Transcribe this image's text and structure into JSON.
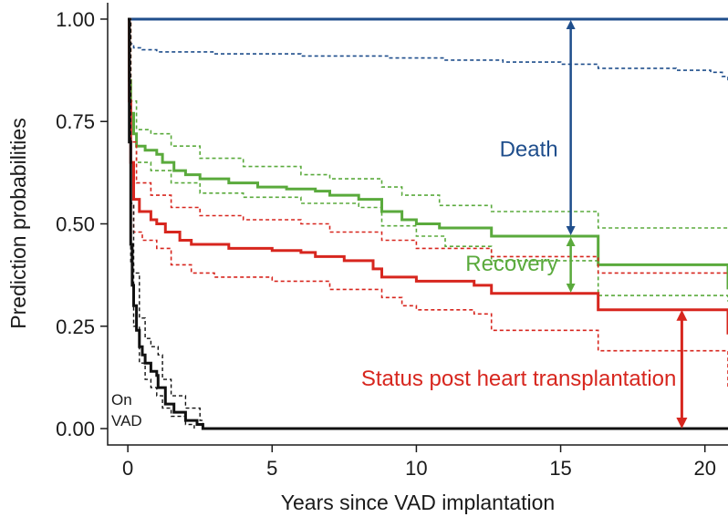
{
  "chart_data": {
    "type": "line",
    "xlabel": "Years since VAD implantation",
    "ylabel": "Prediction probabilities",
    "xlim": [
      -0.7,
      20.8
    ],
    "ylim": [
      -0.04,
      1.04
    ],
    "x_ticks": [
      0,
      5,
      10,
      15,
      20
    ],
    "x_tick_labels": [
      "0",
      "5",
      "10",
      "15",
      "20"
    ],
    "y_ticks": [
      0,
      0.25,
      0.5,
      0.75,
      1.0
    ],
    "y_tick_labels": [
      "0.00",
      "0.25",
      "0.50",
      "0.75",
      "1.00"
    ],
    "grid": false,
    "colors": {
      "death": "#1f4e8c",
      "recovery": "#5aaa3c",
      "transplant": "#d7261e",
      "on_vad": "#111111"
    },
    "series": [
      {
        "key": "death_upper",
        "color": "death",
        "style": "solid",
        "width": 3,
        "points": [
          [
            0,
            1.0
          ],
          [
            20.8,
            1.0
          ]
        ]
      },
      {
        "key": "death_ci",
        "color": "death",
        "style": "dashed",
        "width": 1.6,
        "points": [
          [
            0,
            1.0
          ],
          [
            0.05,
            0.96
          ],
          [
            0.1,
            0.94
          ],
          [
            0.2,
            0.93
          ],
          [
            0.5,
            0.925
          ],
          [
            1,
            0.92
          ],
          [
            3,
            0.915
          ],
          [
            6,
            0.91
          ],
          [
            9,
            0.905
          ],
          [
            11,
            0.9
          ],
          [
            13,
            0.895
          ],
          [
            15,
            0.89
          ],
          [
            16.3,
            0.88
          ],
          [
            19,
            0.875
          ],
          [
            20.2,
            0.87
          ],
          [
            20.6,
            0.86
          ],
          [
            20.8,
            0.85
          ]
        ]
      },
      {
        "key": "recovery_lower_upper",
        "color": "recovery",
        "style": "solid",
        "width": 3,
        "points": [
          [
            0,
            1.0
          ],
          [
            0.05,
            0.85
          ],
          [
            0.1,
            0.77
          ],
          [
            0.2,
            0.72
          ],
          [
            0.3,
            0.69
          ],
          [
            0.6,
            0.68
          ],
          [
            1,
            0.67
          ],
          [
            1.2,
            0.65
          ],
          [
            1.6,
            0.63
          ],
          [
            2,
            0.62
          ],
          [
            2.5,
            0.61
          ],
          [
            3.5,
            0.6
          ],
          [
            4.5,
            0.59
          ],
          [
            5.5,
            0.585
          ],
          [
            6.5,
            0.58
          ],
          [
            7,
            0.57
          ],
          [
            8,
            0.56
          ],
          [
            8.8,
            0.53
          ],
          [
            9.5,
            0.51
          ],
          [
            10,
            0.5
          ],
          [
            10.8,
            0.49
          ],
          [
            12.5,
            0.49
          ],
          [
            12.6,
            0.47
          ],
          [
            15.5,
            0.47
          ],
          [
            16.3,
            0.4
          ],
          [
            20.6,
            0.4
          ],
          [
            20.8,
            0.34
          ]
        ]
      },
      {
        "key": "recovery_ci_hi",
        "color": "recovery",
        "style": "dashed",
        "width": 1.6,
        "points": [
          [
            0,
            1.0
          ],
          [
            0.1,
            0.8
          ],
          [
            0.3,
            0.73
          ],
          [
            0.8,
            0.72
          ],
          [
            1.5,
            0.69
          ],
          [
            2.5,
            0.66
          ],
          [
            4,
            0.64
          ],
          [
            6,
            0.62
          ],
          [
            7,
            0.61
          ],
          [
            8.8,
            0.59
          ],
          [
            9.5,
            0.57
          ],
          [
            10.8,
            0.545
          ],
          [
            12.6,
            0.53
          ],
          [
            15.5,
            0.53
          ],
          [
            16.3,
            0.49
          ],
          [
            20.8,
            0.49
          ]
        ]
      },
      {
        "key": "recovery_ci_lo",
        "color": "recovery",
        "style": "dashed",
        "width": 1.6,
        "points": [
          [
            0,
            1.0
          ],
          [
            0.1,
            0.72
          ],
          [
            0.3,
            0.65
          ],
          [
            0.8,
            0.63
          ],
          [
            1.5,
            0.6
          ],
          [
            2.5,
            0.575
          ],
          [
            4,
            0.565
          ],
          [
            6,
            0.55
          ],
          [
            8,
            0.54
          ],
          [
            8.8,
            0.495
          ],
          [
            10,
            0.47
          ],
          [
            11,
            0.445
          ],
          [
            12.6,
            0.41
          ],
          [
            15.5,
            0.41
          ],
          [
            16.3,
            0.325
          ],
          [
            20.6,
            0.325
          ],
          [
            20.8,
            0.31
          ]
        ]
      },
      {
        "key": "transplant_upper",
        "color": "transplant",
        "style": "solid",
        "width": 3,
        "points": [
          [
            0,
            1.0
          ],
          [
            0.05,
            0.8
          ],
          [
            0.1,
            0.65
          ],
          [
            0.2,
            0.56
          ],
          [
            0.4,
            0.53
          ],
          [
            0.8,
            0.51
          ],
          [
            1,
            0.5
          ],
          [
            1.3,
            0.48
          ],
          [
            1.8,
            0.46
          ],
          [
            2.2,
            0.45
          ],
          [
            3.5,
            0.44
          ],
          [
            5,
            0.435
          ],
          [
            6,
            0.43
          ],
          [
            6.5,
            0.42
          ],
          [
            7.5,
            0.41
          ],
          [
            8.5,
            0.39
          ],
          [
            8.8,
            0.37
          ],
          [
            10,
            0.36
          ],
          [
            12,
            0.35
          ],
          [
            12.6,
            0.33
          ],
          [
            15.5,
            0.33
          ],
          [
            16.3,
            0.29
          ],
          [
            20.6,
            0.29
          ],
          [
            20.8,
            0.23
          ]
        ]
      },
      {
        "key": "transplant_ci_hi",
        "color": "transplant",
        "style": "dashed",
        "width": 1.6,
        "points": [
          [
            0,
            1.0
          ],
          [
            0.1,
            0.7
          ],
          [
            0.3,
            0.6
          ],
          [
            0.8,
            0.57
          ],
          [
            1.5,
            0.54
          ],
          [
            2.5,
            0.52
          ],
          [
            4,
            0.51
          ],
          [
            6,
            0.5
          ],
          [
            7,
            0.48
          ],
          [
            8.8,
            0.46
          ],
          [
            10,
            0.44
          ],
          [
            12.6,
            0.42
          ],
          [
            15.5,
            0.42
          ],
          [
            16.3,
            0.38
          ],
          [
            20.8,
            0.38
          ]
        ]
      },
      {
        "key": "transplant_ci_lo",
        "color": "transplant",
        "style": "dashed",
        "width": 1.6,
        "points": [
          [
            0,
            1.0
          ],
          [
            0.1,
            0.55
          ],
          [
            0.2,
            0.48
          ],
          [
            0.5,
            0.46
          ],
          [
            1,
            0.44
          ],
          [
            1.5,
            0.4
          ],
          [
            2.2,
            0.38
          ],
          [
            3,
            0.37
          ],
          [
            5,
            0.36
          ],
          [
            7,
            0.34
          ],
          [
            8.8,
            0.32
          ],
          [
            9.5,
            0.3
          ],
          [
            10,
            0.29
          ],
          [
            12,
            0.28
          ],
          [
            12.6,
            0.24
          ],
          [
            15.5,
            0.24
          ],
          [
            16.3,
            0.19
          ],
          [
            20.5,
            0.19
          ],
          [
            20.8,
            0.1
          ]
        ]
      },
      {
        "key": "on_vad",
        "color": "on_vad",
        "style": "solid",
        "width": 3,
        "points": [
          [
            0,
            1.0
          ],
          [
            0.05,
            0.7
          ],
          [
            0.1,
            0.45
          ],
          [
            0.15,
            0.35
          ],
          [
            0.2,
            0.3
          ],
          [
            0.3,
            0.24
          ],
          [
            0.4,
            0.2
          ],
          [
            0.5,
            0.18
          ],
          [
            0.6,
            0.16
          ],
          [
            0.8,
            0.14
          ],
          [
            1.0,
            0.13
          ],
          [
            1.05,
            0.1
          ],
          [
            1.3,
            0.06
          ],
          [
            1.6,
            0.04
          ],
          [
            2,
            0.02
          ],
          [
            2.4,
            0.01
          ],
          [
            2.6,
            0.0
          ],
          [
            20.8,
            0.0
          ]
        ]
      },
      {
        "key": "on_vad_ci_hi",
        "color": "on_vad",
        "style": "dashed",
        "width": 1.4,
        "points": [
          [
            0,
            1.0
          ],
          [
            0.1,
            0.55
          ],
          [
            0.2,
            0.38
          ],
          [
            0.4,
            0.27
          ],
          [
            0.6,
            0.22
          ],
          [
            0.8,
            0.2
          ],
          [
            1.05,
            0.18
          ],
          [
            1.2,
            0.12
          ],
          [
            1.5,
            0.08
          ],
          [
            2,
            0.05
          ],
          [
            2.5,
            0.02
          ],
          [
            2.6,
            0.0
          ]
        ]
      },
      {
        "key": "on_vad_ci_lo",
        "color": "on_vad",
        "style": "dashed",
        "width": 1.4,
        "points": [
          [
            0,
            1.0
          ],
          [
            0.1,
            0.4
          ],
          [
            0.2,
            0.25
          ],
          [
            0.4,
            0.16
          ],
          [
            0.6,
            0.12
          ],
          [
            0.8,
            0.1
          ],
          [
            1.0,
            0.08
          ],
          [
            1.2,
            0.05
          ],
          [
            1.5,
            0.03
          ],
          [
            2,
            0.01
          ],
          [
            2.3,
            0.0
          ]
        ]
      }
    ],
    "annotations": [
      {
        "key": "death",
        "text": "Death",
        "color": "death",
        "x": 15.35,
        "y_from": 0.47,
        "y_to": 1.0
      },
      {
        "key": "recovery",
        "text": "Recovery",
        "color": "recovery",
        "x": 15.35,
        "y_from": 0.33,
        "y_to": 0.47
      },
      {
        "key": "transplant",
        "text": "Status post heart transplantation",
        "color": "transplant",
        "x": 19.2,
        "y_from": 0.0,
        "y_to": 0.29
      }
    ],
    "on_vad_label": [
      "On",
      "VAD"
    ]
  }
}
